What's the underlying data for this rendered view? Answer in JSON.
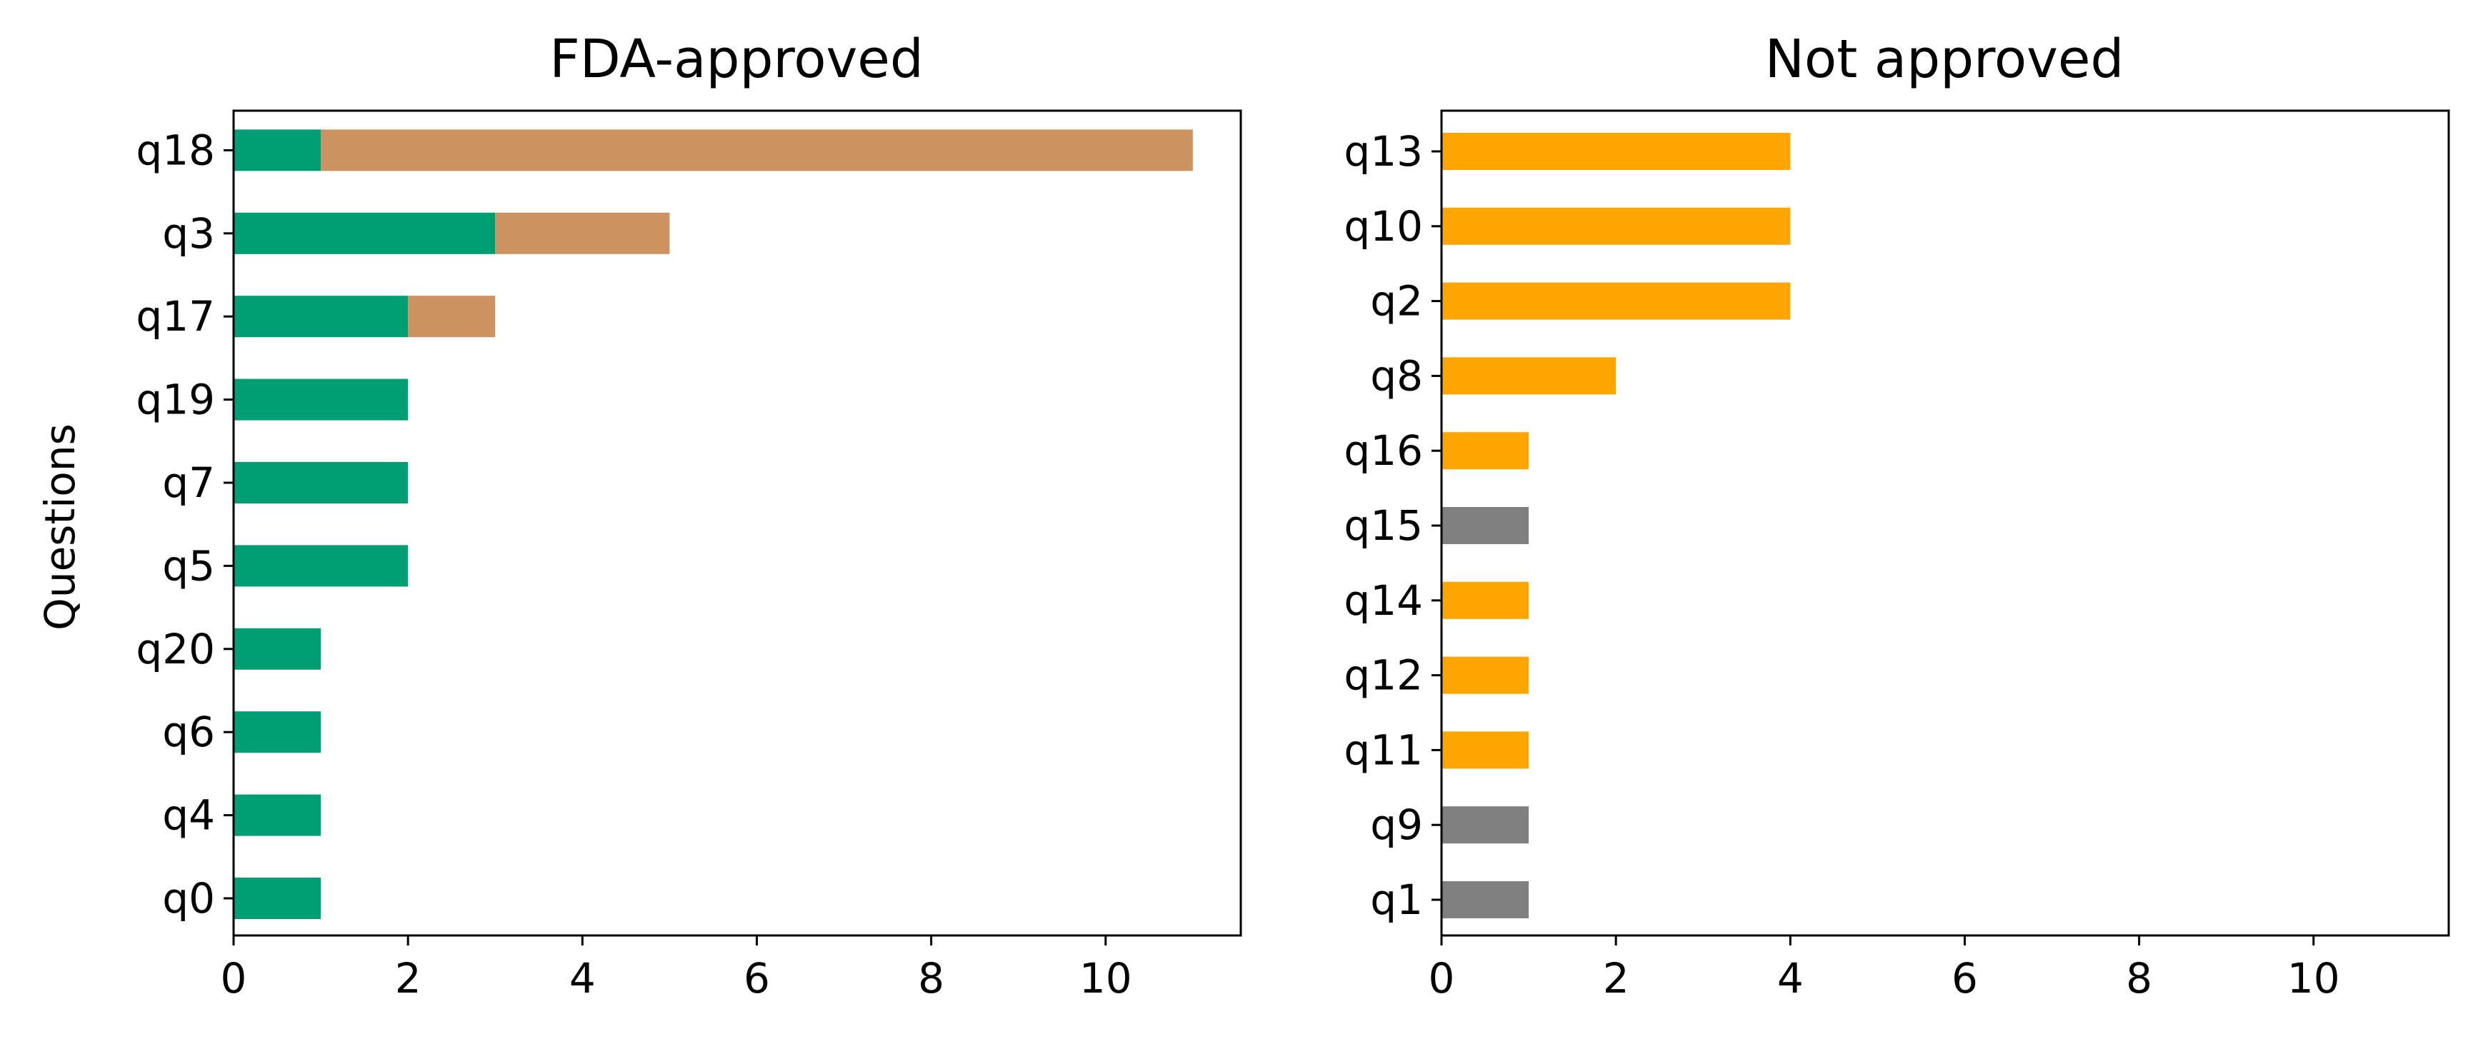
{
  "chart_data": [
    {
      "type": "bar",
      "orientation": "horizontal",
      "stacked": true,
      "title": "FDA-approved",
      "xlabel": "",
      "ylabel": "Questions",
      "xlim": [
        0,
        11.55
      ],
      "xticks": [
        0,
        2,
        4,
        6,
        8,
        10
      ],
      "grid": false,
      "legend": "none",
      "categories": [
        "q0",
        "q4",
        "q6",
        "q20",
        "q5",
        "q7",
        "q19",
        "q17",
        "q3",
        "q18"
      ],
      "segments": [
        {
          "values": [
            1,
            1,
            1,
            1,
            2,
            2,
            2,
            2,
            3,
            1
          ],
          "color": "#009E73"
        },
        {
          "values": [
            0,
            0,
            0,
            0,
            0,
            0,
            0,
            1,
            2,
            10
          ],
          "color": "#CC9360"
        }
      ]
    },
    {
      "type": "bar",
      "orientation": "horizontal",
      "stacked": false,
      "title": "Not approved",
      "xlabel": "",
      "ylabel": "",
      "xlim": [
        0,
        11.55
      ],
      "xticks": [
        0,
        2,
        4,
        6,
        8,
        10
      ],
      "grid": false,
      "legend": "none",
      "categories": [
        "q1",
        "q9",
        "q11",
        "q12",
        "q14",
        "q15",
        "q16",
        "q8",
        "q2",
        "q10",
        "q13"
      ],
      "values": [
        1,
        1,
        1,
        1,
        1,
        1,
        1,
        2,
        4,
        4,
        4
      ],
      "colors": [
        "#808080",
        "#808080",
        "#FFA500",
        "#FFA500",
        "#FFA500",
        "#808080",
        "#FFA500",
        "#FFA500",
        "#FFA500",
        "#FFA500",
        "#FFA500"
      ]
    }
  ]
}
